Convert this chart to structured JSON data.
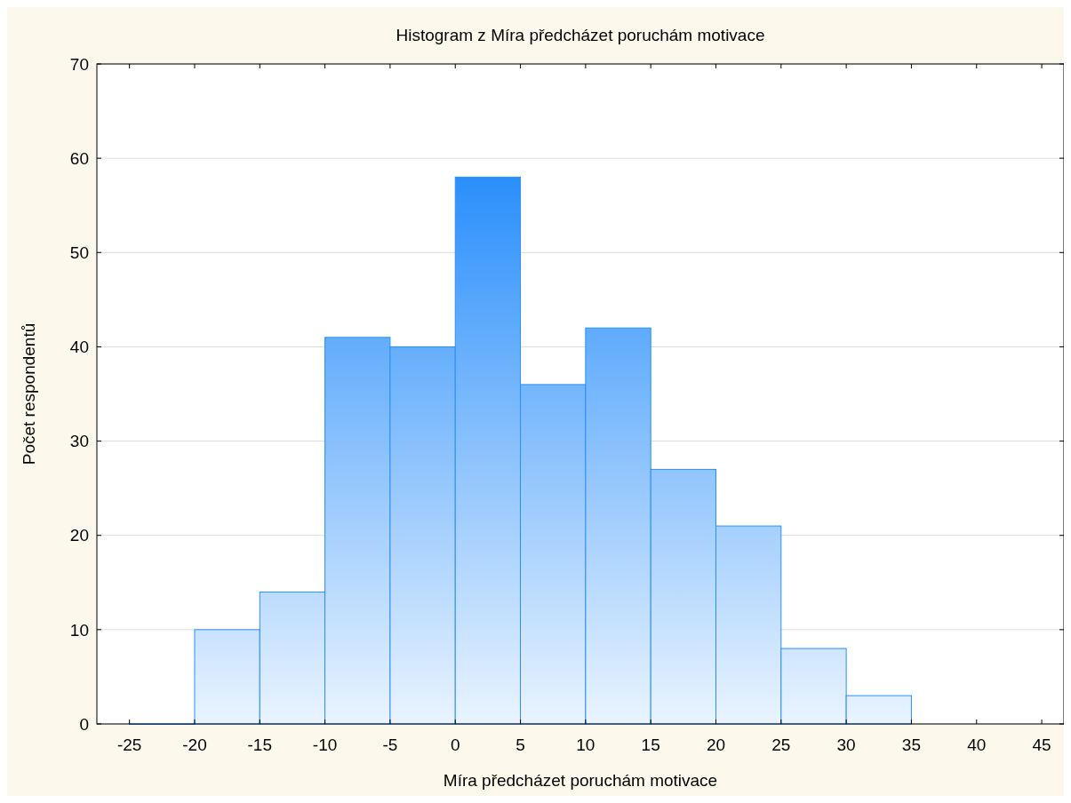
{
  "chart_data": {
    "type": "histogram",
    "title": "Histogram z Míra předcházet poruchám motivace",
    "xlabel": "Míra předcházet poruchám motivace",
    "ylabel": "Počet respondentů",
    "bins": [
      -25,
      -20,
      -15,
      -10,
      -5,
      0,
      5,
      10,
      15,
      20,
      25,
      30,
      35
    ],
    "values": [
      0,
      10,
      14,
      41,
      40,
      58,
      36,
      42,
      27,
      21,
      8,
      3
    ],
    "color": "#2a8ffb",
    "xlim": [
      -27.5,
      46.7
    ],
    "xticks": [
      -25,
      -20,
      -15,
      -10,
      -5,
      0,
      5,
      10,
      15,
      20,
      25,
      30,
      35,
      40,
      45
    ],
    "ylim": [
      0,
      70
    ],
    "yticks": [
      0,
      10,
      20,
      30,
      40,
      50,
      60,
      70
    ],
    "grid": "y"
  }
}
